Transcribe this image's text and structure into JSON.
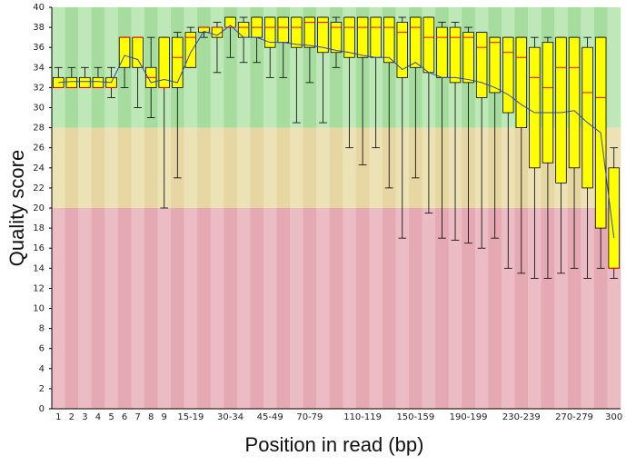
{
  "chart_data": {
    "type": "boxplot",
    "x_label": "Position in read (bp)",
    "y_label": "Quality score",
    "categories": [
      "1",
      "2",
      "3",
      "4",
      "5",
      "6",
      "7",
      "8",
      "9",
      null,
      "15-19",
      null,
      null,
      "30-34",
      null,
      null,
      "45-49",
      null,
      null,
      "70-79",
      null,
      null,
      null,
      "110-119",
      null,
      null,
      null,
      "150-159",
      null,
      null,
      null,
      "190-199",
      null,
      null,
      null,
      "230-239",
      null,
      null,
      null,
      "270-279",
      null,
      null,
      "300"
    ],
    "low": [
      32,
      32,
      32,
      32,
      31,
      32,
      30,
      29,
      20,
      23,
      34,
      37,
      33.5,
      35,
      34.5,
      34.5,
      33,
      33,
      28.5,
      32.5,
      28.5,
      34,
      26,
      24.3,
      26,
      22,
      17,
      23,
      19.5,
      17,
      16.8,
      16.5,
      16,
      17,
      14,
      13.5,
      13,
      13,
      13.5,
      14,
      13,
      14,
      13
    ],
    "q1": [
      32,
      32,
      32,
      32,
      32,
      34,
      34,
      32,
      32,
      32,
      34,
      37.5,
      37,
      38,
      37,
      37,
      36,
      36.5,
      36,
      36,
      35.5,
      35.5,
      35,
      35,
      35,
      34.5,
      33,
      34,
      33.5,
      33,
      32.5,
      32.5,
      31,
      31.5,
      29.5,
      28,
      24,
      24.5,
      22.5,
      24,
      22,
      18,
      14
    ],
    "median": [
      32,
      32,
      32,
      32,
      32,
      37,
      37,
      33,
      32,
      35,
      37,
      38,
      38,
      38,
      38,
      38,
      38,
      38,
      38,
      38.5,
      38.5,
      38,
      38,
      38,
      38,
      38,
      37.5,
      38,
      37,
      37,
      37,
      37,
      36,
      36.5,
      35.5,
      35,
      33,
      32,
      34,
      34,
      31.5,
      31,
      14
    ],
    "q3": [
      33,
      33,
      33,
      33,
      33,
      37,
      37,
      34,
      37,
      37,
      37.5,
      38,
      38,
      39,
      38.5,
      39,
      39,
      39,
      39,
      39,
      39,
      38.5,
      39,
      39,
      39,
      39,
      38.5,
      39,
      39,
      38,
      38,
      37.5,
      37.5,
      37,
      37,
      37,
      36,
      36.5,
      37,
      37,
      36,
      37,
      24
    ],
    "high": [
      34,
      34,
      34,
      34,
      34,
      37,
      37,
      37,
      37,
      37.5,
      38,
      38,
      38.5,
      39,
      39,
      39,
      39,
      39,
      39,
      39,
      39,
      39,
      39,
      39,
      39,
      39,
      39,
      39,
      39,
      38.5,
      38.5,
      38,
      37.5,
      37,
      37,
      37,
      37,
      37,
      37,
      37,
      37,
      37,
      26
    ],
    "mean": [
      32.5,
      32.6,
      32.6,
      32.6,
      32.5,
      35.2,
      34.8,
      32.5,
      32.8,
      32.5,
      35.5,
      37.6,
      37.2,
      38.2,
      37,
      37,
      36.5,
      36.5,
      36.3,
      36.2,
      36,
      35.7,
      35.5,
      35.2,
      35,
      35,
      33.8,
      34.5,
      33.5,
      33,
      33,
      32.8,
      32.5,
      32,
      31.3,
      30.3,
      29.5,
      29.5,
      29.5,
      29.7,
      28.5,
      27.5,
      17
    ],
    "box_color": "#ffff00",
    "median_color": "#ff0000",
    "mean_color": "#3344bb",
    "background_bands": [
      {
        "from": 28,
        "to": 40,
        "colors": [
          "#bfe8b8",
          "#a6dd9f"
        ]
      },
      {
        "from": 20,
        "to": 28,
        "colors": [
          "#ece2b6",
          "#e6d6a2"
        ]
      },
      {
        "from": 0,
        "to": 20,
        "colors": [
          "#ebbcc3",
          "#e5a9b3"
        ]
      }
    ],
    "ylim": [
      0,
      40
    ],
    "yticks": [
      0,
      2,
      4,
      6,
      8,
      10,
      12,
      14,
      16,
      18,
      20,
      22,
      24,
      26,
      28,
      30,
      32,
      34,
      36,
      38,
      40
    ]
  }
}
